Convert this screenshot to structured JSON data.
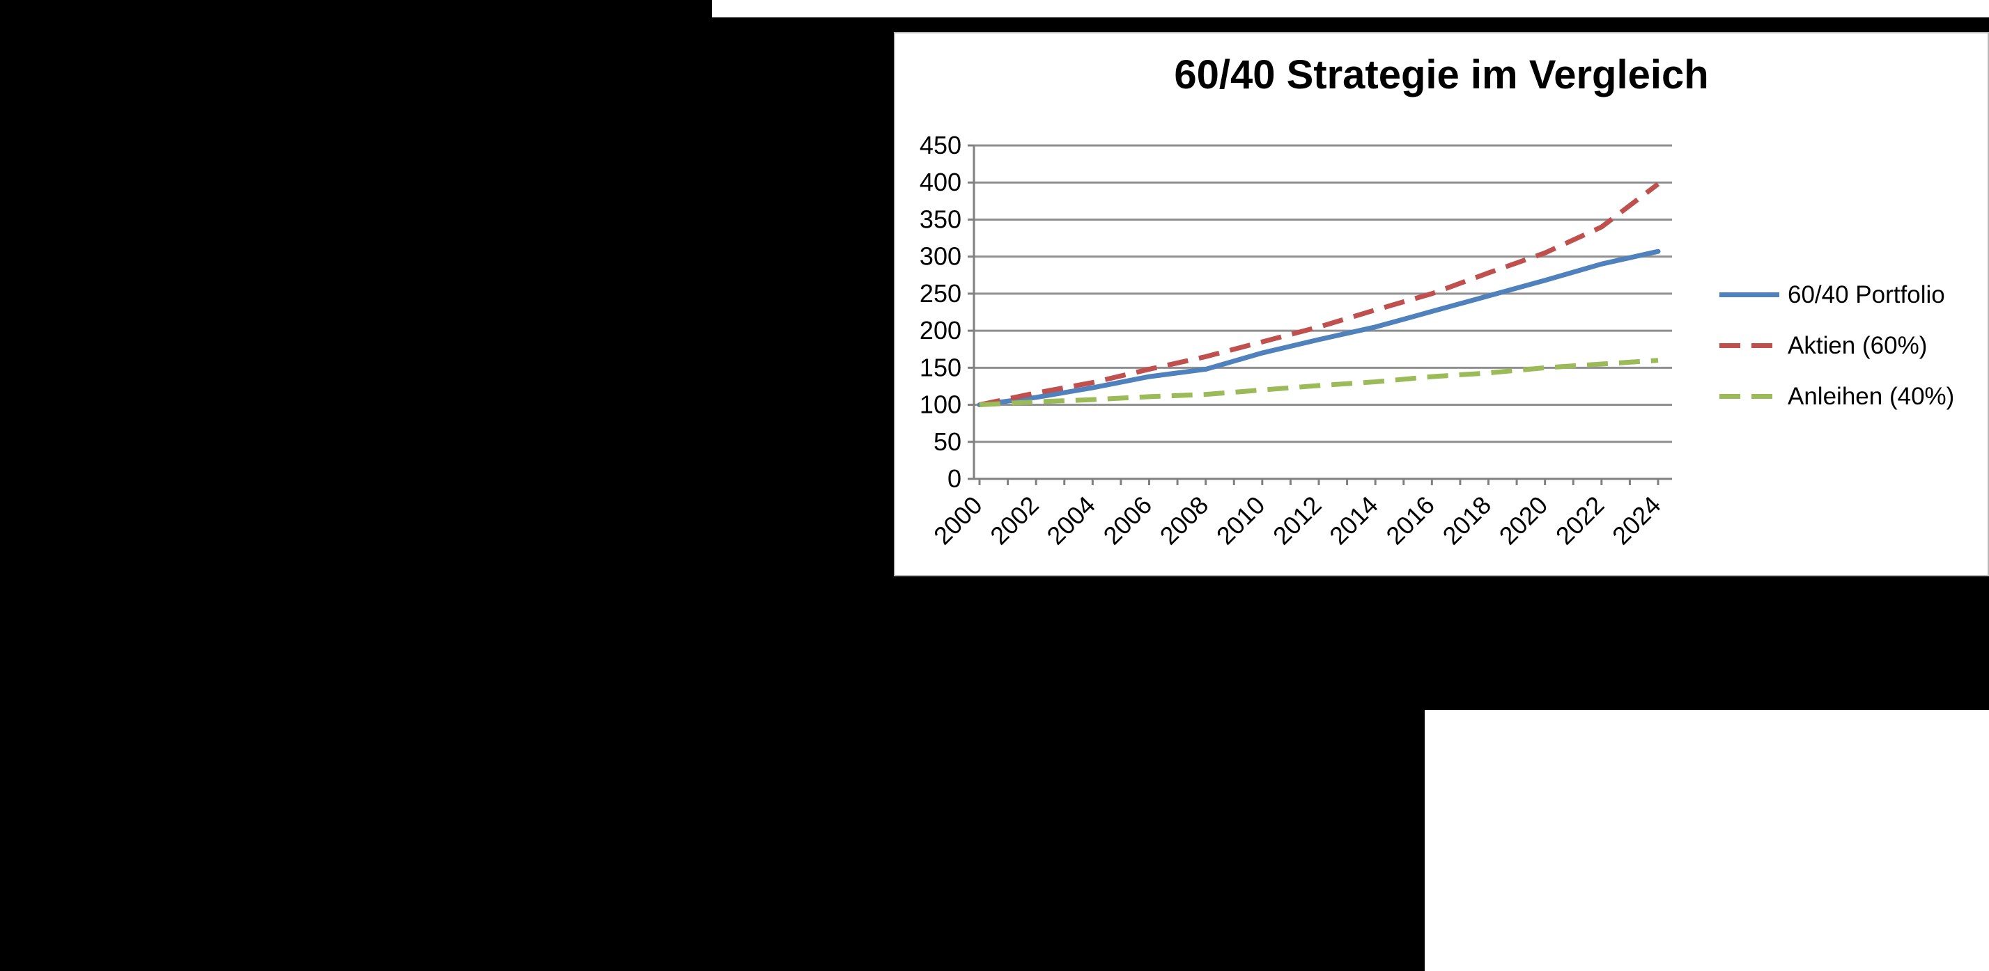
{
  "window": {
    "background_color": "#000000"
  },
  "decor": {
    "top_strip_color": "#ffffff",
    "bottom_box_color": "#ffffff",
    "panel_background": "#ffffff",
    "panel_border_color": "#b9b9b9"
  },
  "chart_data": {
    "type": "line",
    "title": "60/40 Strategie im Vergleich",
    "xlabel": "",
    "ylabel": "",
    "categories": [
      "2000",
      "2002",
      "2004",
      "2006",
      "2008",
      "2010",
      "2012",
      "2014",
      "2016",
      "2018",
      "2020",
      "2022",
      "2024"
    ],
    "series": [
      {
        "name": "60/40 Portfolio",
        "color": "#4F81BD",
        "dash": "solid",
        "values": [
          100,
          110,
          123,
          138,
          148,
          170,
          188,
          205,
          226,
          247,
          268,
          290,
          307
        ]
      },
      {
        "name": "Aktien (60%)",
        "color": "#C0504D",
        "dash": "dashed",
        "values": [
          100,
          116,
          130,
          148,
          165,
          185,
          205,
          228,
          250,
          278,
          305,
          340,
          398
        ]
      },
      {
        "name": "Anleihen (40%)",
        "color": "#9BBB59",
        "dash": "dashed",
        "values": [
          100,
          104,
          107,
          111,
          114,
          120,
          126,
          131,
          138,
          143,
          150,
          155,
          160
        ]
      }
    ],
    "ylim": [
      0,
      450
    ],
    "ytick_step": 50,
    "grid": true,
    "legend_position": "right",
    "axis_color": "#808080",
    "gridline_color": "#8f8f8f",
    "text_color": "#000000"
  }
}
